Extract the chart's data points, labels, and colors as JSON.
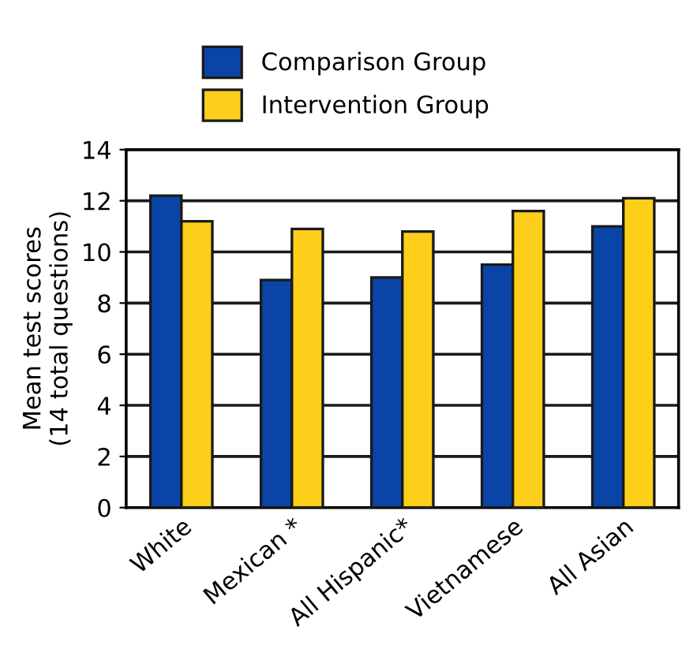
{
  "chart_data": {
    "type": "bar",
    "ylabel": "Mean test scores\n(14 total questions)",
    "categories": [
      "White",
      "Mexican *",
      "All Hispanic*",
      "Vietnamese",
      "All Asian"
    ],
    "series": [
      {
        "name": "Comparison Group",
        "color": "#0a44a6",
        "values": [
          12.2,
          8.9,
          9.0,
          9.5,
          11.0
        ]
      },
      {
        "name": "Intervention Group",
        "color": "#fdcf1a",
        "values": [
          11.2,
          10.9,
          10.8,
          11.6,
          12.1
        ]
      }
    ],
    "ylim": [
      0,
      14
    ],
    "yticks": [
      0,
      2,
      4,
      6,
      8,
      10,
      12,
      14
    ],
    "grid": "y",
    "legend": "top"
  }
}
